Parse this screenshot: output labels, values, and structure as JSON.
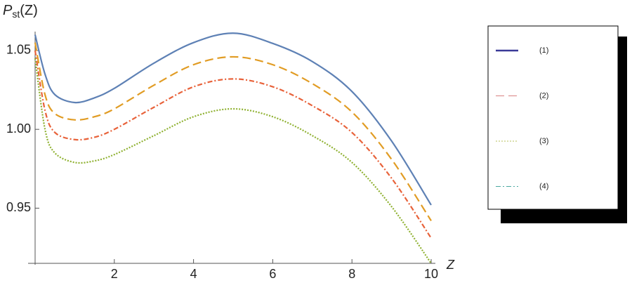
{
  "chart_data": {
    "type": "line",
    "y_label": "P",
    "y_label_sub": "st",
    "y_label_arg": "(Z)",
    "x_label": "Z",
    "x": [
      0,
      0.25,
      0.5,
      1,
      1.5,
      2,
      3,
      4,
      5,
      6,
      7,
      8,
      9,
      10
    ],
    "series": [
      {
        "color": "#5e81b5",
        "style": "solid",
        "values": [
          1.06,
          1.035,
          1.022,
          1.017,
          1.02,
          1.026,
          1.042,
          1.055,
          1.061,
          1.0545,
          1.043,
          1.024,
          0.9926,
          0.952
        ]
      },
      {
        "color": "#e19c24",
        "style": "dashed",
        "values": [
          1.055,
          1.022,
          1.01,
          1.006,
          1.008,
          1.013,
          1.028,
          1.041,
          1.046,
          1.041,
          1.029,
          1.011,
          0.981,
          0.942
        ]
      },
      {
        "color": "#e8623a",
        "style": "dashdot",
        "values": [
          1.05,
          1.012,
          0.998,
          0.9935,
          0.995,
          1.0,
          1.014,
          1.027,
          1.032,
          1.027,
          1.015,
          0.998,
          0.969,
          0.931
        ]
      },
      {
        "color": "#8fb131",
        "style": "dotted",
        "values": [
          1.045,
          1.0,
          0.985,
          0.979,
          0.98,
          0.984,
          0.996,
          1.008,
          1.013,
          1.008,
          0.996,
          0.979,
          0.951,
          0.915
        ]
      }
    ],
    "xlim": [
      0,
      10
    ],
    "xticks": [
      2,
      4,
      6,
      8,
      10
    ],
    "ylim": [
      0.915,
      1.062
    ],
    "yticks": [
      0.95,
      {
        "value": 1.0,
        "label": "1.00"
      },
      1.05
    ],
    "legend": [
      {
        "label": "(1)",
        "color": "#3a3a98",
        "style": "solid"
      },
      {
        "label": "(2)",
        "color": "#d98080",
        "style": "dashed"
      },
      {
        "label": "(3)",
        "color": "#b5bf5a",
        "style": "dotted"
      },
      {
        "label": "(4)",
        "color": "#4aa8a0",
        "style": "dashdot"
      }
    ]
  }
}
